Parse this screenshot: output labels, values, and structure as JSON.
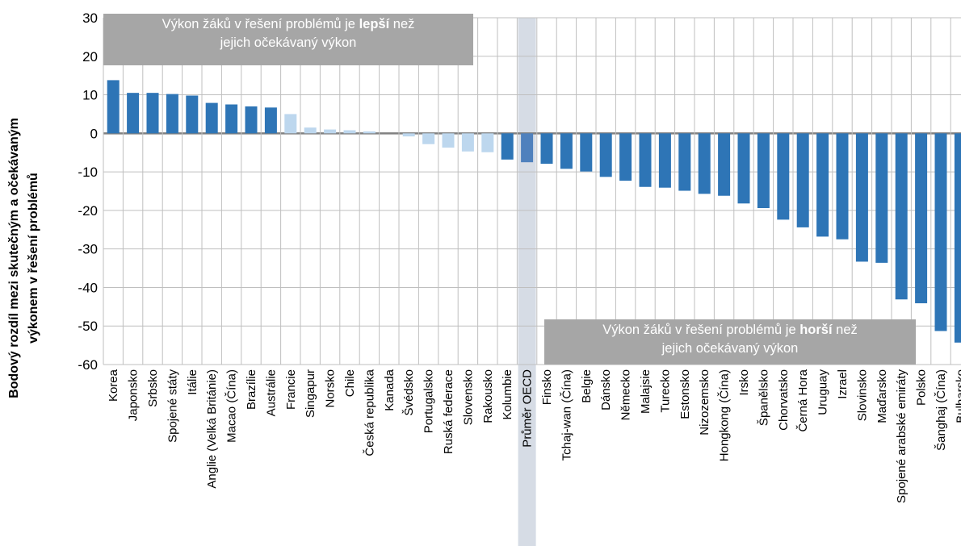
{
  "chart_data": {
    "type": "bar",
    "ylabel": "Bodový rozdíl mezi skutečným a očekávaným výkonem v řešení problémů",
    "ylabel_lines": [
      "Bodový rozdíl mezi skutečným a očekávaným",
      "výkonem v řešení problémů"
    ],
    "ylim": [
      -60,
      30
    ],
    "yticks": [
      30,
      20,
      10,
      0,
      -10,
      -20,
      -30,
      -40,
      -50,
      -60
    ],
    "grid": true,
    "categories": [
      "Korea",
      "Japonsko",
      "Srbsko",
      "Spojené státy",
      "Itálie",
      "Anglie (Velká Británie)",
      "Macao (Čína)",
      "Brazílie",
      "Austrálie",
      "Francie",
      "Singapur",
      "Norsko",
      "Chile",
      "Česká  republika",
      "Kanada",
      "Švédsko",
      "Portugalsko",
      "Ruská federace",
      "Slovensko",
      "Rakousko",
      "Kolumbie",
      "Průměr OECD",
      "Finsko",
      "Tchaj-wan (Čína)",
      "Belgie",
      "Dánsko",
      "Německo",
      "Malajsie",
      "Turecko",
      "Estonsko",
      "Nizozemsko",
      "Hongkong (Čína)",
      "Irsko",
      "Španělsko",
      "Chorvatsko",
      "Černá Hora",
      "Uruguay",
      "Izrael",
      "Slovinsko",
      "Maďarsko",
      "Spojené arabské emiráty",
      "Polsko",
      "Šanghaj (Čína)",
      "Bulharsko"
    ],
    "values": [
      13.8,
      10.5,
      10.5,
      10.2,
      9.8,
      7.9,
      7.5,
      7.0,
      6.7,
      5.0,
      1.5,
      1.0,
      0.8,
      0.5,
      0.0,
      -0.8,
      -2.8,
      -3.7,
      -4.7,
      -4.9,
      -6.8,
      -7.5,
      -7.9,
      -9.2,
      -9.9,
      -11.3,
      -12.3,
      -13.9,
      -14.1,
      -14.9,
      -15.7,
      -16.2,
      -18.2,
      -19.4,
      -22.4,
      -24.4,
      -26.8,
      -27.5,
      -33.3,
      -33.6,
      -43.1,
      -44.1,
      -51.3,
      -54.3
    ],
    "significant": [
      true,
      true,
      true,
      true,
      true,
      true,
      true,
      true,
      true,
      false,
      false,
      false,
      false,
      false,
      false,
      false,
      false,
      false,
      false,
      false,
      true,
      true,
      true,
      true,
      true,
      true,
      true,
      true,
      true,
      true,
      true,
      true,
      true,
      true,
      true,
      true,
      true,
      true,
      true,
      true,
      true,
      true,
      true,
      true
    ],
    "highlight_category": "Průměr OECD",
    "colors": {
      "significant": "#2e75b6",
      "not_significant": "#bdd7ee",
      "oecd_bar": "#4f81bd",
      "oecd_band": "#d6dce5",
      "grid": "#bfbfbf",
      "zero_line": "#808080",
      "annotation_bg": "#a6a6a6"
    },
    "annotations": {
      "better": {
        "line1_before": "Výkon žáků v řešení problémů je ",
        "line1_bold": "lepší",
        "line1_after": " než",
        "line2": "jejich očekávaný výkon"
      },
      "worse": {
        "line1_before": "Výkon žáků v řešení problémů je ",
        "line1_bold": "horší",
        "line1_after": " než",
        "line2": "jejich očekávaný výkon"
      }
    }
  }
}
